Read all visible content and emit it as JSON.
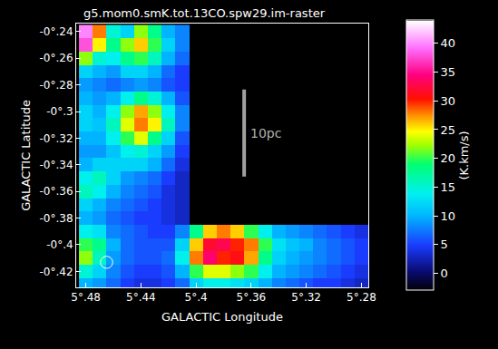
{
  "chart_data": {
    "type": "heatmap",
    "title": "g5.mom0.smK.tot.13CO.spw29.im-raster",
    "x_label": "GALACTIC Longitude",
    "y_label": "GALACTIC Latitude",
    "x": [
      5.48,
      5.47,
      5.46,
      5.45,
      5.44,
      5.43,
      5.42,
      5.41,
      5.4,
      5.39,
      5.38,
      5.37,
      5.36,
      5.35,
      5.34,
      5.33,
      5.32,
      5.31,
      5.3,
      5.29,
      5.28
    ],
    "y": [
      -0.43,
      -0.42,
      -0.41,
      -0.4,
      -0.39,
      -0.38,
      -0.37,
      -0.36,
      -0.35,
      -0.34,
      -0.33,
      -0.32,
      -0.31,
      -0.3,
      -0.29,
      -0.28,
      -0.27,
      -0.26,
      -0.25,
      -0.24
    ],
    "z": [
      [
        10,
        9,
        7,
        5,
        4,
        4,
        5,
        7,
        12,
        14,
        14,
        13,
        12,
        10,
        8,
        7,
        6,
        5,
        5,
        4,
        3
      ],
      [
        15,
        12,
        8,
        6,
        5,
        5,
        6,
        10,
        20,
        24,
        24,
        22,
        20,
        14,
        10,
        9,
        8,
        7,
        6,
        5,
        4
      ],
      [
        22,
        16,
        9,
        7,
        6,
        6,
        7,
        14,
        28,
        34,
        30,
        31,
        27,
        18,
        12,
        10,
        9,
        8,
        7,
        6,
        5
      ],
      [
        20,
        18,
        10,
        7,
        6,
        6,
        6,
        12,
        26,
        32,
        33,
        30,
        28,
        20,
        13,
        11,
        10,
        8,
        7,
        6,
        5
      ],
      [
        14,
        13,
        8,
        7,
        6,
        5,
        5,
        8,
        18,
        26,
        28,
        26,
        20,
        14,
        10,
        9,
        8,
        7,
        6,
        5,
        4
      ],
      [
        10,
        9,
        7,
        6,
        5,
        5,
        4,
        3,
        null,
        null,
        null,
        null,
        null,
        null,
        null,
        null,
        null,
        null,
        null,
        null,
        null
      ],
      [
        12,
        10,
        8,
        7,
        6,
        5,
        4,
        3,
        null,
        null,
        null,
        null,
        null,
        null,
        null,
        null,
        null,
        null,
        null,
        null,
        null
      ],
      [
        16,
        14,
        10,
        8,
        7,
        6,
        4,
        3,
        null,
        null,
        null,
        null,
        null,
        null,
        null,
        null,
        null,
        null,
        null,
        null,
        null
      ],
      [
        14,
        16,
        12,
        9,
        8,
        7,
        5,
        3,
        null,
        null,
        null,
        null,
        null,
        null,
        null,
        null,
        null,
        null,
        null,
        null,
        null
      ],
      [
        10,
        12,
        12,
        12,
        12,
        10,
        7,
        4,
        null,
        null,
        null,
        null,
        null,
        null,
        null,
        null,
        null,
        null,
        null,
        null,
        null
      ],
      [
        9,
        9,
        11,
        14,
        15,
        12,
        9,
        5,
        null,
        null,
        null,
        null,
        null,
        null,
        null,
        null,
        null,
        null,
        null,
        null,
        null
      ],
      [
        10,
        10,
        14,
        20,
        24,
        18,
        12,
        6,
        null,
        null,
        null,
        null,
        null,
        null,
        null,
        null,
        null,
        null,
        null,
        null,
        null
      ],
      [
        12,
        11,
        16,
        24,
        28,
        25,
        16,
        8,
        null,
        null,
        null,
        null,
        null,
        null,
        null,
        null,
        null,
        null,
        null,
        null,
        null
      ],
      [
        12,
        10,
        14,
        22,
        27,
        22,
        14,
        8,
        null,
        null,
        null,
        null,
        null,
        null,
        null,
        null,
        null,
        null,
        null,
        null,
        null
      ],
      [
        10,
        9,
        10,
        14,
        18,
        15,
        10,
        6,
        null,
        null,
        null,
        null,
        null,
        null,
        null,
        null,
        null,
        null,
        null,
        null,
        null
      ],
      [
        9,
        8,
        7,
        8,
        9,
        8,
        6,
        5,
        null,
        null,
        null,
        null,
        null,
        null,
        null,
        null,
        null,
        null,
        null,
        null,
        null
      ],
      [
        12,
        10,
        9,
        12,
        12,
        10,
        7,
        5,
        null,
        null,
        null,
        null,
        null,
        null,
        null,
        null,
        null,
        null,
        null,
        null,
        null
      ],
      [
        22,
        15,
        14,
        18,
        20,
        16,
        10,
        7,
        null,
        null,
        null,
        null,
        null,
        null,
        null,
        null,
        null,
        null,
        null,
        null,
        null
      ],
      [
        38,
        25,
        18,
        22,
        26,
        20,
        12,
        8,
        null,
        null,
        null,
        null,
        null,
        null,
        null,
        null,
        null,
        null,
        null,
        null,
        null
      ],
      [
        40,
        28,
        15,
        12,
        22,
        18,
        10,
        8,
        null,
        null,
        null,
        null,
        null,
        null,
        null,
        null,
        null,
        null,
        null,
        null,
        null
      ]
    ],
    "xlim": [
      5.487,
      5.275
    ],
    "ylim": [
      -0.432,
      -0.234
    ],
    "xticks": [
      {
        "value": 5.48,
        "label": "5°.48"
      },
      {
        "value": 5.44,
        "label": "5°.44"
      },
      {
        "value": 5.4,
        "label": "5°.4"
      },
      {
        "value": 5.36,
        "label": "5°.36"
      },
      {
        "value": 5.32,
        "label": "5°.32"
      },
      {
        "value": 5.28,
        "label": "5°.28"
      }
    ],
    "yticks": [
      {
        "value": -0.24,
        "label": "-0°.24"
      },
      {
        "value": -0.26,
        "label": "-0°.26"
      },
      {
        "value": -0.28,
        "label": "-0°.28"
      },
      {
        "value": -0.3,
        "label": "-0°.3"
      },
      {
        "value": -0.32,
        "label": "-0°.32"
      },
      {
        "value": -0.34,
        "label": "-0°.34"
      },
      {
        "value": -0.36,
        "label": "-0°.36"
      },
      {
        "value": -0.38,
        "label": "-0°.38"
      },
      {
        "value": -0.4,
        "label": "-0°.4"
      },
      {
        "value": -0.42,
        "label": "-0°.42"
      }
    ],
    "colorbar": {
      "title": "(K.km/s)",
      "zlim": [
        -3,
        44
      ],
      "zticks": [
        0,
        5,
        10,
        15,
        20,
        25,
        30,
        35,
        40
      ]
    },
    "annotations": [
      {
        "text": "10pc"
      }
    ]
  }
}
